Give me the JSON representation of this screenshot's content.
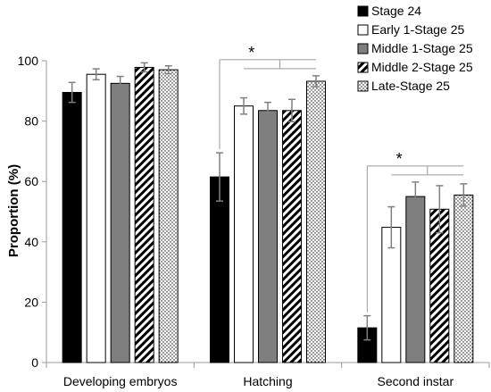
{
  "chart_data": {
    "type": "bar",
    "categories": [
      "Developing embryos",
      "Hatching",
      "Second instar"
    ],
    "ylabel": "Proportion (%)",
    "xlabel": "",
    "ylim": [
      0,
      100
    ],
    "yticks": [
      0,
      20,
      40,
      60,
      80,
      100
    ],
    "grid": false,
    "legend_position": "top-right",
    "series": [
      {
        "name": "Stage 24",
        "pattern": "solid-black",
        "values": [
          89.5,
          61.5,
          11.5
        ],
        "errors": [
          3.3,
          8.0,
          4.0
        ]
      },
      {
        "name": "Early 1-Stage 25",
        "pattern": "white",
        "values": [
          95.5,
          85.0,
          44.8
        ],
        "errors": [
          1.8,
          2.7,
          6.8
        ]
      },
      {
        "name": "Middle 1-Stage 25",
        "pattern": "solid-gray",
        "values": [
          92.5,
          83.5,
          55.0
        ],
        "errors": [
          2.3,
          2.7,
          4.8
        ]
      },
      {
        "name": "Middle 2-Stage 25",
        "pattern": "diagonal-stripes",
        "values": [
          97.8,
          83.5,
          50.8
        ],
        "errors": [
          1.5,
          3.7,
          7.8
        ]
      },
      {
        "name": "Late-Stage 25",
        "pattern": "dotted",
        "values": [
          97.0,
          93.2,
          55.5
        ],
        "errors": [
          1.3,
          1.8,
          3.7
        ]
      }
    ],
    "annotations": [
      {
        "text": "*",
        "category": "Hatching",
        "from_series": 0,
        "to_series": [
          1,
          4
        ]
      },
      {
        "text": "*",
        "category": "Second instar",
        "from_series": 0,
        "to_series": [
          1,
          4
        ]
      }
    ],
    "colors": {
      "bar_edge": "#000000",
      "black": "#000000",
      "white": "#ffffff",
      "gray": "#7f7f7f",
      "error_bar": "#808080",
      "axis": "#9a9a9a"
    }
  }
}
